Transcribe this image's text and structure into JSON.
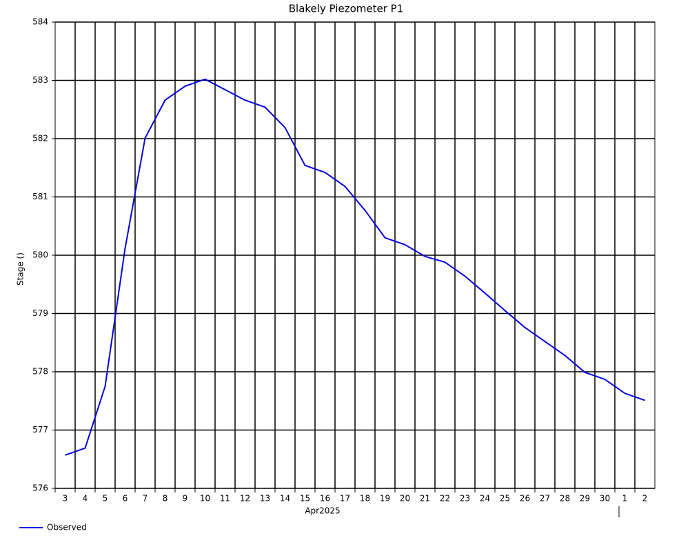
{
  "chart_data": {
    "type": "line",
    "title": "Blakely Piezometer P1",
    "y_label": "Stage ()",
    "x_label": "Apr2025",
    "categories": [
      "3",
      "4",
      "5",
      "6",
      "7",
      "8",
      "9",
      "10",
      "11",
      "12",
      "13",
      "14",
      "15",
      "16",
      "17",
      "18",
      "19",
      "20",
      "21",
      "22",
      "23",
      "24",
      "25",
      "26",
      "27",
      "28",
      "29",
      "30",
      "1",
      "2"
    ],
    "series": [
      {
        "name": "Observed",
        "color": "#0000e0",
        "values": [
          576.57,
          576.69,
          577.75,
          580.12,
          582.01,
          582.66,
          582.9,
          583.02,
          582.84,
          582.66,
          582.54,
          582.19,
          581.54,
          581.42,
          581.18,
          580.77,
          580.3,
          580.18,
          579.98,
          579.88,
          579.64,
          579.35,
          579.05,
          578.76,
          578.52,
          578.28,
          577.99,
          577.87,
          577.63,
          577.51
        ]
      }
    ],
    "ylim": [
      576,
      584
    ],
    "yticks": [
      576,
      577,
      578,
      579,
      580,
      581,
      582,
      583,
      584
    ],
    "grid": true
  }
}
